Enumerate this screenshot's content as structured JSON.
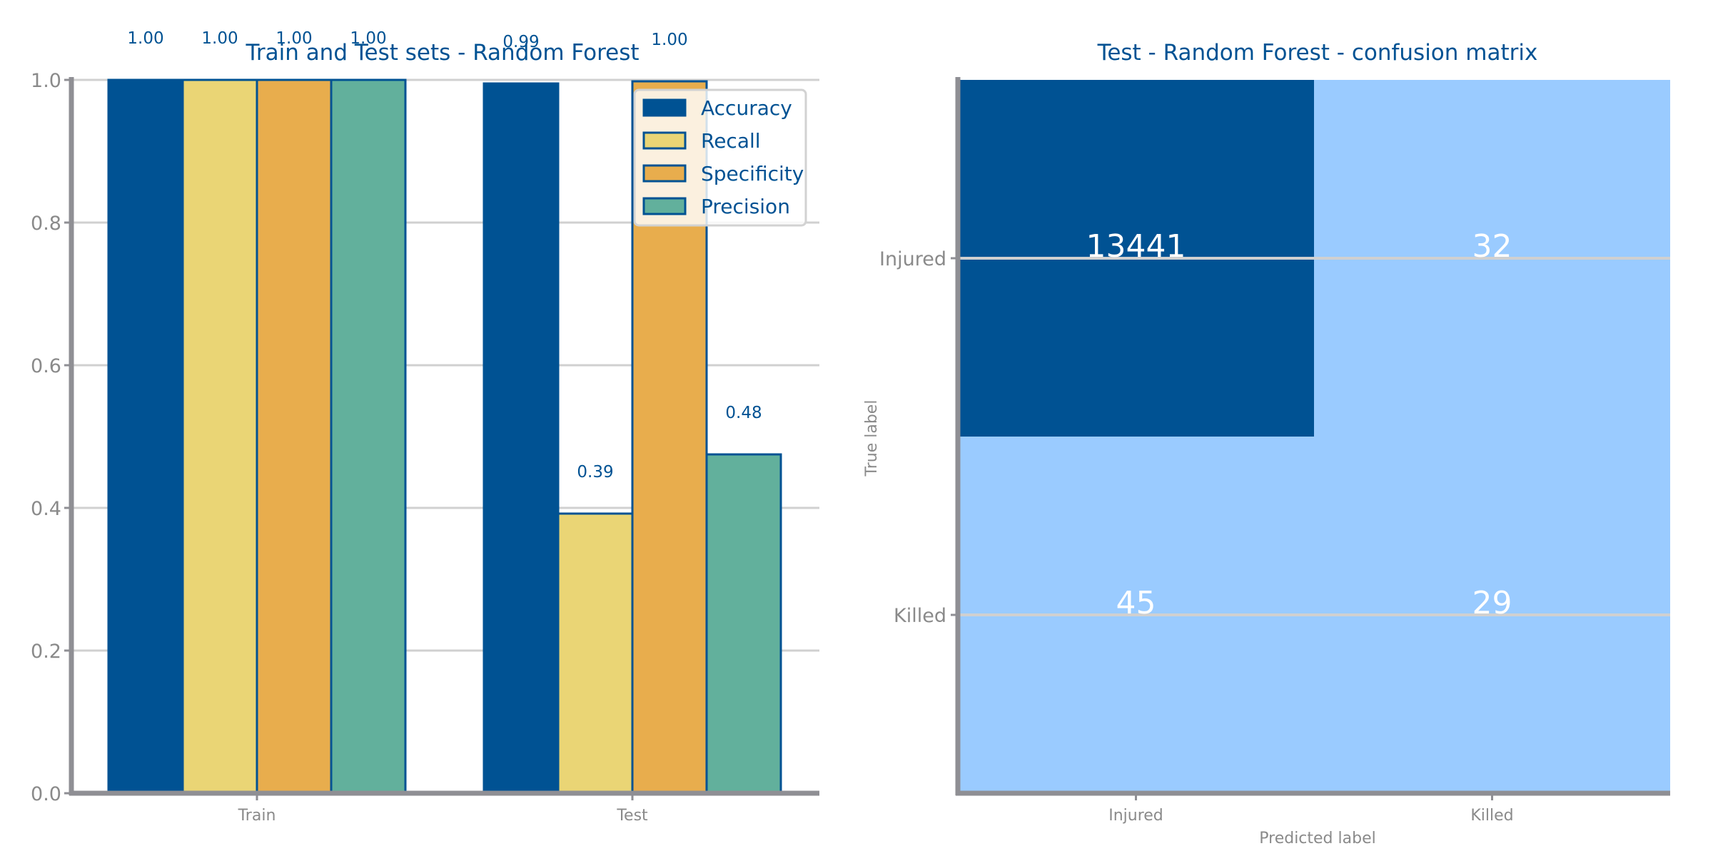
{
  "chart_data": [
    {
      "type": "bar",
      "title": "Train and Test sets - Random Forest",
      "xlabel": "",
      "ylabel": "",
      "categories": [
        "Train",
        "Test"
      ],
      "series": [
        {
          "name": "Accuracy",
          "values": [
            1.0,
            0.995
          ],
          "labels": [
            "1.00",
            "0.99"
          ],
          "color": "#005293"
        },
        {
          "name": "Recall",
          "values": [
            1.0,
            0.392
          ],
          "labels": [
            "1.00",
            "0.39"
          ],
          "color": "#EAD575"
        },
        {
          "name": "Specificity",
          "values": [
            1.0,
            0.998
          ],
          "labels": [
            "1.00",
            "1.00"
          ],
          "color": "#E8AD4D"
        },
        {
          "name": "Precision",
          "values": [
            1.0,
            0.475
          ],
          "labels": [
            "1.00",
            "0.48"
          ],
          "color": "#62B09C"
        }
      ],
      "ylim": [
        0,
        1.0
      ],
      "yticks": [
        "0.0",
        "0.2",
        "0.4",
        "0.6",
        "0.8",
        "1.0"
      ],
      "grid": true,
      "legend": "top-right"
    },
    {
      "type": "heatmap",
      "title": "Test - Random Forest - confusion matrix",
      "xlabel": "Predicted label",
      "ylabel": "True label",
      "x_categories": [
        "Injured",
        "Killed"
      ],
      "y_categories": [
        "Injured",
        "Killed"
      ],
      "values": [
        [
          13441,
          32
        ],
        [
          45,
          29
        ]
      ],
      "colors": {
        "high": "#005293",
        "low": "#9ACBFF",
        "text": "#ffffff"
      }
    }
  ],
  "colors": {
    "axis": "#8f8f94",
    "grid": "#d0d0d0",
    "title": "#005293",
    "bar_edge": "#005293"
  }
}
